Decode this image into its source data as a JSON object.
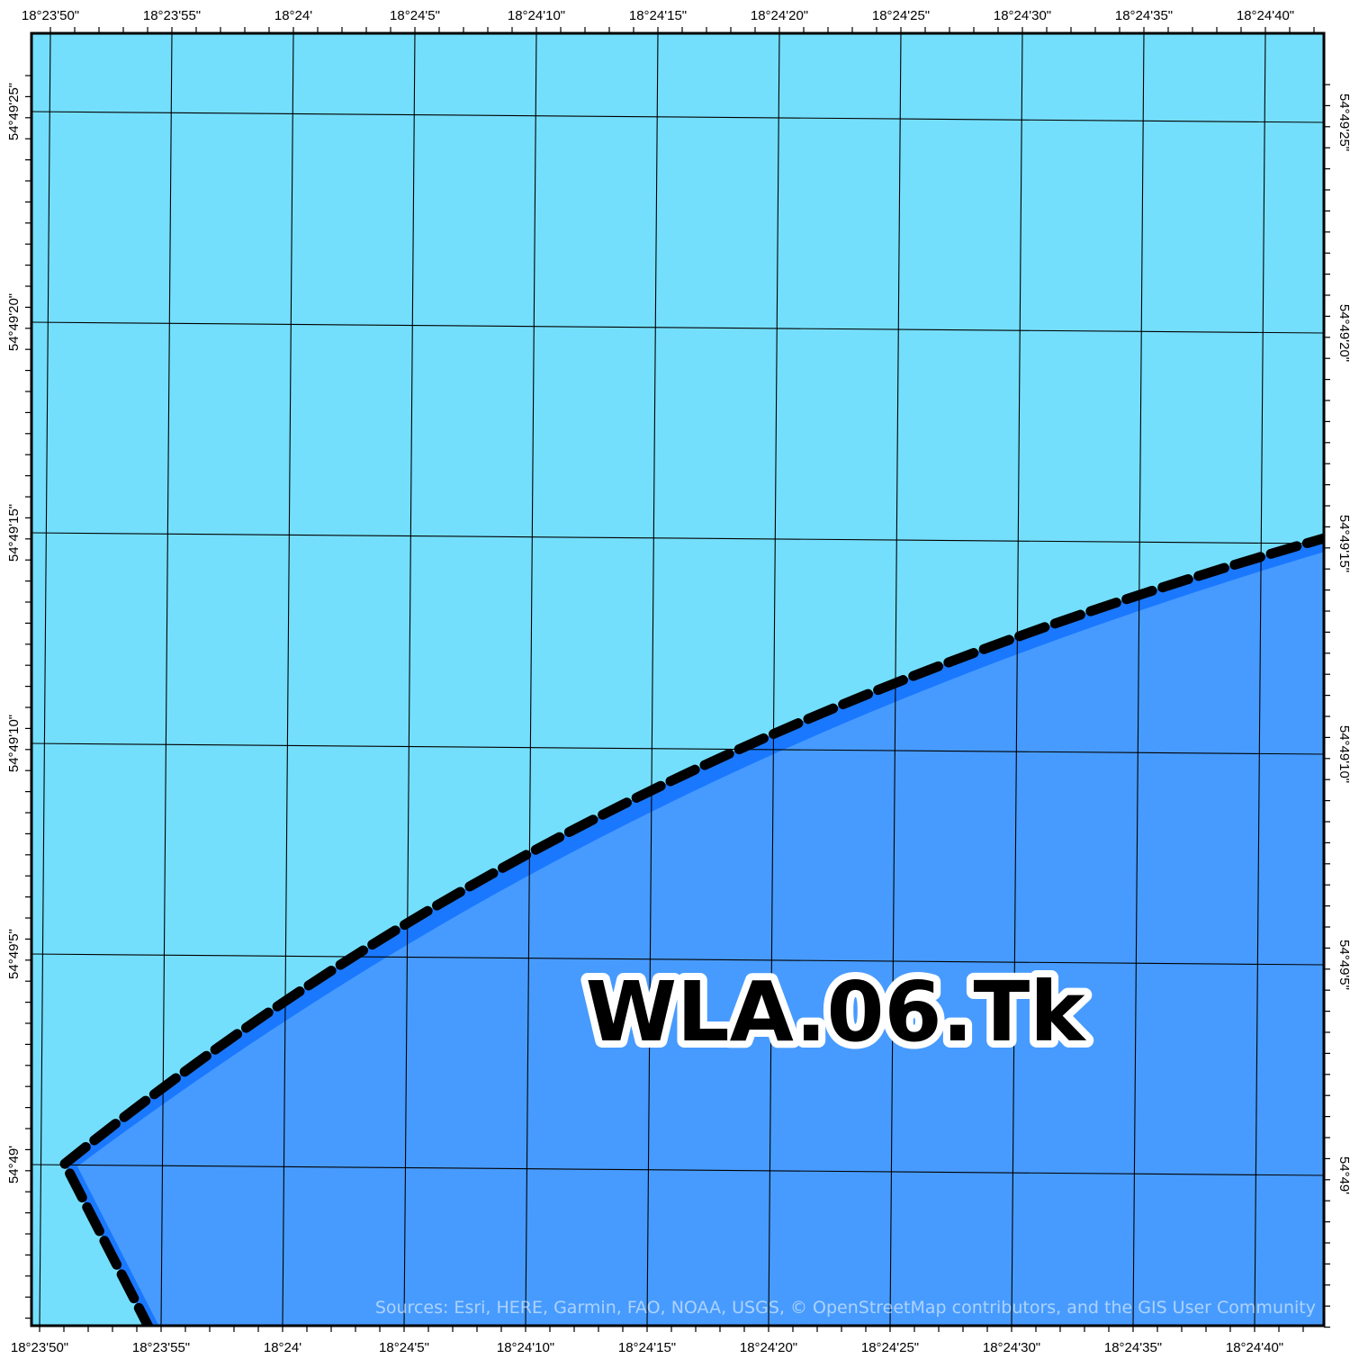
{
  "map": {
    "zone_label": "WLA.06.Tk",
    "attribution": "Sources:  Esri, HERE, Garmin, FAO, NOAA, USGS, © OpenStreetMap contributors, and the GIS User Community",
    "colors": {
      "sea": "#74dffd",
      "zone_fill": "#479bfe",
      "zone_edge": "#1a78ff",
      "boundary": "#000000",
      "graticule": "#000000",
      "frame": "#000000"
    },
    "boundary_style": "thick-dashed",
    "longitude_labels_top": [
      "18°23'50\"",
      "18°23'55\"",
      "18°24'",
      "18°24'5\"",
      "18°24'10\"",
      "18°24'15\"",
      "18°24'20\"",
      "18°24'25\"",
      "18°24'30\"",
      "18°24'35\"",
      "18°24'40\""
    ],
    "longitude_labels_bottom": [
      "18°23'50\"",
      "18°23'55\"",
      "18°24'",
      "18°24'5\"",
      "18°24'10\"",
      "18°24'15\"",
      "18°24'20\"",
      "18°24'25\"",
      "18°24'30\"",
      "18°24'35\"",
      "18°24'40\""
    ],
    "latitude_labels_left": [
      "54°49'25\"",
      "54°49'20\"",
      "54°49'15\"",
      "54°49'10\"",
      "54°49'5\"",
      "54°49'"
    ],
    "latitude_labels_right": [
      "54°49'25\"",
      "54°49'20\"",
      "54°49'15\"",
      "54°49'10\"",
      "54°49'5\"",
      "54°49'"
    ]
  }
}
